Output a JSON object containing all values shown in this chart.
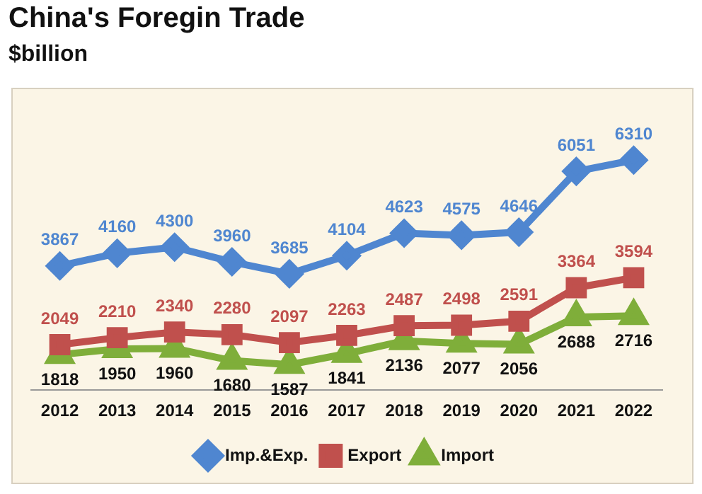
{
  "chart_data": {
    "type": "line",
    "title": "China's Foregin Trade",
    "subtitle": "$billion",
    "categories": [
      "2012",
      "2013",
      "2014",
      "2015",
      "2016",
      "2017",
      "2018",
      "2019",
      "2020",
      "2021",
      "2022"
    ],
    "series": [
      {
        "name": "Imp.&Exp.",
        "color": "#4f86d0",
        "marker": "diamond",
        "values": [
          3867,
          4160,
          4300,
          3960,
          3685,
          4104,
          4623,
          4575,
          4646,
          6051,
          6310
        ]
      },
      {
        "name": "Export",
        "color": "#c0504d",
        "marker": "square",
        "values": [
          2049,
          2210,
          2340,
          2280,
          2097,
          2263,
          2487,
          2498,
          2591,
          3364,
          3594
        ]
      },
      {
        "name": "Import",
        "color": "#7fae3a",
        "marker": "triangle",
        "values": [
          1818,
          1950,
          1960,
          1680,
          1587,
          1841,
          2136,
          2077,
          2056,
          2688,
          2716
        ]
      }
    ],
    "data_labels": true,
    "legend": "bottom",
    "grid": false,
    "line_style": "solid"
  }
}
